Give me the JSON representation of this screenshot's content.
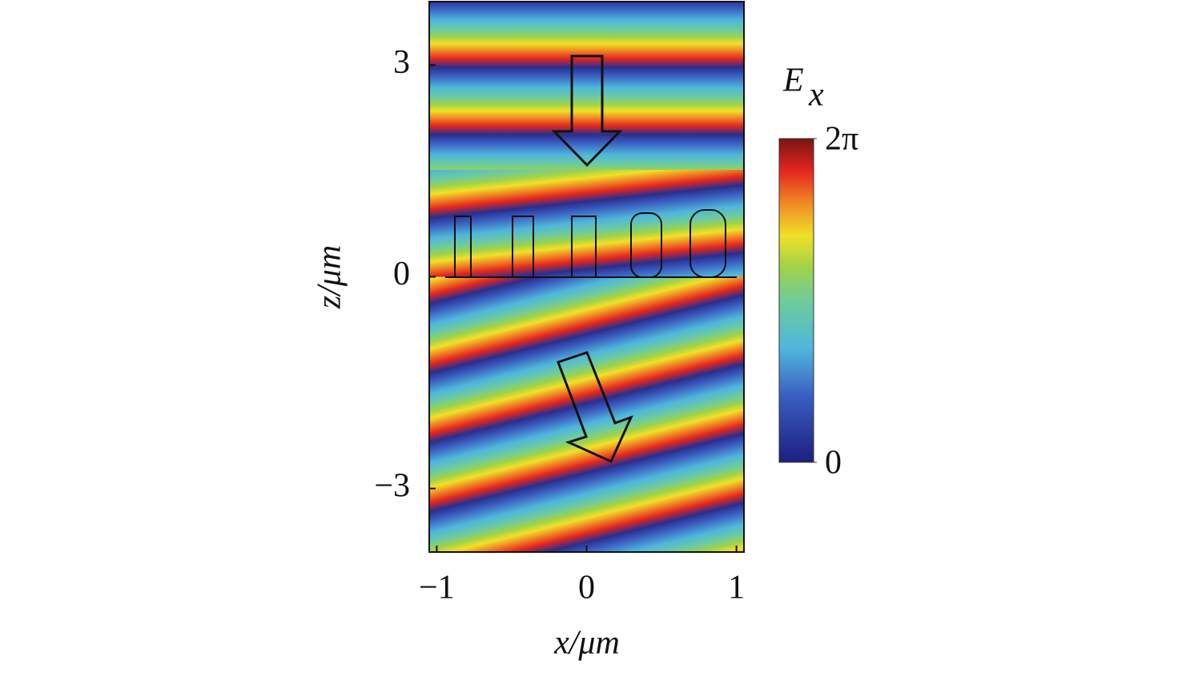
{
  "chart_data": {
    "type": "heatmap",
    "xlabel": "x/μm",
    "ylabel": "z/μm",
    "xlim": [
      -1.05,
      1.05
    ],
    "ylim": [
      -3.9,
      3.9
    ],
    "xticks": [
      {
        "value": -1,
        "label": "−1"
      },
      0,
      1
    ],
    "yticks": [
      {
        "value": -3,
        "label": "−3"
      },
      0,
      3
    ],
    "colorbar": {
      "label": "E",
      "label_subscript": "x",
      "lim": [
        0,
        6.2832
      ],
      "ticks": [
        0,
        {
          "value": 6.2832,
          "label": "2π"
        }
      ]
    }
  }
}
